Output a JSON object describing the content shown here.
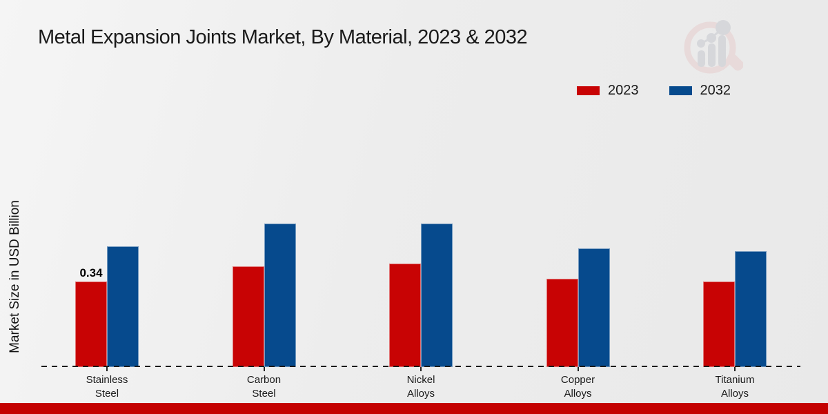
{
  "page": {
    "title": "Metal Expansion Joints Market, By Material, 2023 & 2032",
    "ylabel": "Market Size in USD Billion",
    "footer_color": "#c40101"
  },
  "legend": [
    {
      "label": "2023",
      "color": "#c80304"
    },
    {
      "label": "2032",
      "color": "#064a8d"
    }
  ],
  "chart_data": {
    "type": "bar",
    "title": "Metal Expansion Joints Market, By Material, 2023 & 2032",
    "xlabel": "",
    "ylabel": "Market Size in USD Billion",
    "categories": [
      "Stainless Steel",
      "Carbon Steel",
      "Nickel Alloys",
      "Copper Alloys",
      "Titanium Alloys"
    ],
    "series": [
      {
        "name": "2023",
        "color": "#c80304",
        "values": [
          0.34,
          0.4,
          0.41,
          0.35,
          0.34
        ]
      },
      {
        "name": "2032",
        "color": "#064a8d",
        "values": [
          0.48,
          0.57,
          0.57,
          0.47,
          0.46
        ]
      }
    ],
    "data_labels": [
      {
        "series": "2023",
        "category": "Stainless Steel",
        "text": "0.34"
      }
    ],
    "ylim": [
      0,
      0.62
    ],
    "grid": false,
    "axis_line_style": "dashed-baseline",
    "legend_position": "top-right"
  }
}
